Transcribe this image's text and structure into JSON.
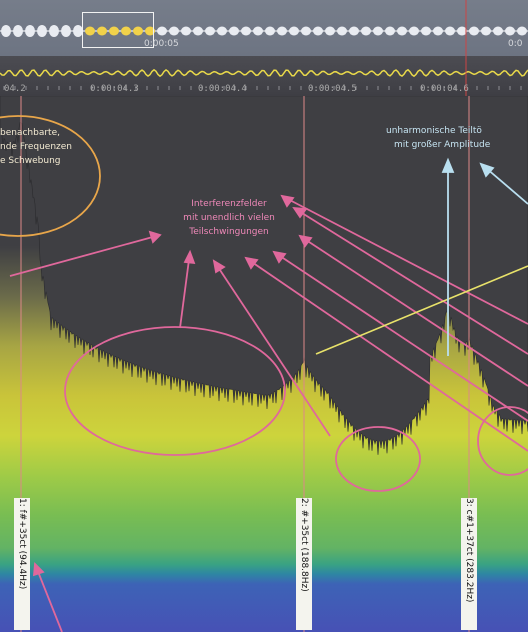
{
  "overview": {
    "selection_time": "0:00:05",
    "right_time": "0:0"
  },
  "ruler": {
    "ticks": [
      "04.2",
      "0:00:04.3",
      "0:00:04.4",
      "0:00:04.5",
      "0:00:04.6"
    ]
  },
  "markers": [
    {
      "label": "1: f#+35ct (94.4Hz)"
    },
    {
      "label": "2: #+35ct (188.8Hz)"
    },
    {
      "label": "3: c#1+37ct (283.2Hz)"
    }
  ],
  "annotations": {
    "neighbors": [
      "benachbarte,",
      "nde Frequenzen",
      "e Schwebung"
    ],
    "interference": [
      "Interferenzfelder",
      "mit unendlich vielen",
      "Teilschwingungen"
    ],
    "inharmonic": [
      "unharmonische Teiltö",
      "mit großer Amplitude"
    ]
  },
  "colors": {
    "annotation_pink": "#e0689c",
    "ellipse_orange": "#e8a64a",
    "annotation_cyan": "#b9dff0",
    "spectrum_yellow": "#e8d838"
  }
}
